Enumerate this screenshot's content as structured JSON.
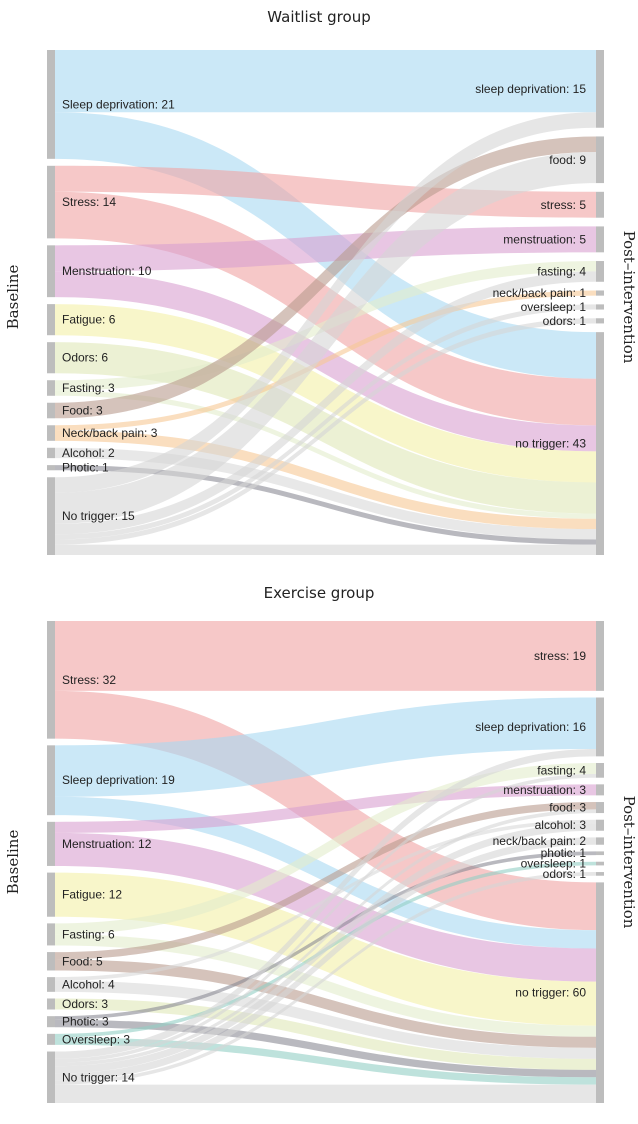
{
  "chart_data": [
    {
      "type": "sankey",
      "title": "Waitlist group",
      "left_axis_label": "Baseline",
      "right_axis_label": "Post–intervention",
      "sources": [
        {
          "name": "Sleep deprivation",
          "value": 21,
          "label": "Sleep deprivation: 21",
          "color": "#a9d8f1"
        },
        {
          "name": "Stress",
          "value": 14,
          "label": "Stress: 14",
          "color": "#f0a3a3"
        },
        {
          "name": "Menstruation",
          "value": 10,
          "label": "Menstruation: 10",
          "color": "#d9a0d0"
        },
        {
          "name": "Fatigue",
          "value": 6,
          "label": "Fatigue: 6",
          "color": "#f3f0a6"
        },
        {
          "name": "Odors",
          "value": 6,
          "label": "Odors: 6",
          "color": "#dfe8b8"
        },
        {
          "name": "Fasting",
          "value": 3,
          "label": "Fasting: 3",
          "color": "#e2eccb"
        },
        {
          "name": "Food",
          "value": 3,
          "label": "Food: 3",
          "color": "#b99b8d"
        },
        {
          "name": "Neck/back pain",
          "value": 3,
          "label": "Neck/back pain: 3",
          "color": "#f6c894"
        },
        {
          "name": "Alcohol",
          "value": 2,
          "label": "Alcohol: 2",
          "color": "#d8d8d8"
        },
        {
          "name": "Photic",
          "value": 1,
          "label": "Photic: 1",
          "color": "#8b8b94"
        },
        {
          "name": "No trigger",
          "value": 15,
          "label": "No trigger: 15",
          "color": "#d6d6d6"
        }
      ],
      "targets": [
        {
          "name": "sleep deprivation",
          "value": 15,
          "label": "sleep deprivation: 15"
        },
        {
          "name": "food",
          "value": 9,
          "label": "food: 9"
        },
        {
          "name": "stress",
          "value": 5,
          "label": "stress: 5"
        },
        {
          "name": "menstruation",
          "value": 5,
          "label": "menstruation: 5"
        },
        {
          "name": "fasting",
          "value": 4,
          "label": "fasting: 4"
        },
        {
          "name": "neck/back pain",
          "value": 1,
          "label": "neck/back pain: 1"
        },
        {
          "name": "oversleep",
          "value": 1,
          "label": "oversleep: 1"
        },
        {
          "name": "odors",
          "value": 1,
          "label": "odors: 1"
        },
        {
          "name": "no trigger",
          "value": 43,
          "label": "no trigger: 43"
        }
      ],
      "links": [
        {
          "source": "Sleep deprivation",
          "target": "sleep deprivation",
          "value": 12
        },
        {
          "source": "Sleep deprivation",
          "target": "no trigger",
          "value": 9
        },
        {
          "source": "Stress",
          "target": "stress",
          "value": 5
        },
        {
          "source": "Stress",
          "target": "no trigger",
          "value": 9
        },
        {
          "source": "Menstruation",
          "target": "menstruation",
          "value": 5
        },
        {
          "source": "Menstruation",
          "target": "no trigger",
          "value": 5
        },
        {
          "source": "Fatigue",
          "target": "no trigger",
          "value": 6
        },
        {
          "source": "Odors",
          "target": "no trigger",
          "value": 6
        },
        {
          "source": "Fasting",
          "target": "fasting",
          "value": 2
        },
        {
          "source": "Fasting",
          "target": "no trigger",
          "value": 1
        },
        {
          "source": "Food",
          "target": "food",
          "value": 3
        },
        {
          "source": "Neck/back pain",
          "target": "neck/back pain",
          "value": 1
        },
        {
          "source": "Neck/back pain",
          "target": "no trigger",
          "value": 2
        },
        {
          "source": "Alcohol",
          "target": "no trigger",
          "value": 2
        },
        {
          "source": "Photic",
          "target": "no trigger",
          "value": 1
        },
        {
          "source": "No trigger",
          "target": "sleep deprivation",
          "value": 3
        },
        {
          "source": "No trigger",
          "target": "food",
          "value": 6
        },
        {
          "source": "No trigger",
          "target": "fasting",
          "value": 2
        },
        {
          "source": "No trigger",
          "target": "oversleep",
          "value": 1
        },
        {
          "source": "No trigger",
          "target": "odors",
          "value": 1
        },
        {
          "source": "No trigger",
          "target": "no trigger",
          "value": 2
        }
      ]
    },
    {
      "type": "sankey",
      "title": "Exercise group",
      "left_axis_label": "Baseline",
      "right_axis_label": "Post–intervention",
      "sources": [
        {
          "name": "Stress",
          "value": 32,
          "label": "Stress: 32",
          "color": "#f0a3a3"
        },
        {
          "name": "Sleep deprivation",
          "value": 19,
          "label": "Sleep deprivation: 19",
          "color": "#a9d8f1"
        },
        {
          "name": "Menstruation",
          "value": 12,
          "label": "Menstruation: 12",
          "color": "#d9a0d0"
        },
        {
          "name": "Fatigue",
          "value": 12,
          "label": "Fatigue: 12",
          "color": "#f3f0a6"
        },
        {
          "name": "Fasting",
          "value": 6,
          "label": "Fasting: 6",
          "color": "#e2eccb"
        },
        {
          "name": "Food",
          "value": 5,
          "label": "Food: 5",
          "color": "#b99b8d"
        },
        {
          "name": "Alcohol",
          "value": 4,
          "label": "Alcohol: 4",
          "color": "#d8d8d8"
        },
        {
          "name": "Odors",
          "value": 3,
          "label": "Odors: 3",
          "color": "#dfe8b8"
        },
        {
          "name": "Photic",
          "value": 3,
          "label": "Photic: 3",
          "color": "#8b8b94"
        },
        {
          "name": "Oversleep",
          "value": 3,
          "label": "Oversleep: 3",
          "color": "#93cfc4"
        },
        {
          "name": "No trigger",
          "value": 14,
          "label": "No trigger: 14",
          "color": "#d6d6d6"
        }
      ],
      "targets": [
        {
          "name": "stress",
          "value": 19,
          "label": "stress: 19"
        },
        {
          "name": "sleep deprivation",
          "value": 16,
          "label": "sleep deprivation: 16"
        },
        {
          "name": "fasting",
          "value": 4,
          "label": "fasting: 4"
        },
        {
          "name": "menstruation",
          "value": 3,
          "label": "menstruation: 3"
        },
        {
          "name": "food",
          "value": 3,
          "label": "food: 3"
        },
        {
          "name": "alcohol",
          "value": 3,
          "label": "alcohol: 3"
        },
        {
          "name": "neck/back pain",
          "value": 2,
          "label": "neck/back pain: 2"
        },
        {
          "name": "photic",
          "value": 1,
          "label": "photic: 1"
        },
        {
          "name": "oversleep",
          "value": 1,
          "label": "oversleep: 1"
        },
        {
          "name": "odors",
          "value": 1,
          "label": "odors: 1"
        },
        {
          "name": "no trigger",
          "value": 60,
          "label": "no trigger: 60"
        }
      ],
      "links": [
        {
          "source": "Stress",
          "target": "stress",
          "value": 19
        },
        {
          "source": "Stress",
          "target": "no trigger",
          "value": 13
        },
        {
          "source": "Sleep deprivation",
          "target": "sleep deprivation",
          "value": 14
        },
        {
          "source": "Sleep deprivation",
          "target": "no trigger",
          "value": 5
        },
        {
          "source": "Menstruation",
          "target": "menstruation",
          "value": 3
        },
        {
          "source": "Menstruation",
          "target": "no trigger",
          "value": 9
        },
        {
          "source": "Fatigue",
          "target": "no trigger",
          "value": 12
        },
        {
          "source": "Fasting",
          "target": "fasting",
          "value": 3
        },
        {
          "source": "Fasting",
          "target": "no trigger",
          "value": 3
        },
        {
          "source": "Food",
          "target": "food",
          "value": 2
        },
        {
          "source": "Food",
          "target": "no trigger",
          "value": 3
        },
        {
          "source": "Alcohol",
          "target": "alcohol",
          "value": 1
        },
        {
          "source": "Alcohol",
          "target": "no trigger",
          "value": 3
        },
        {
          "source": "Odors",
          "target": "no trigger",
          "value": 3
        },
        {
          "source": "Photic",
          "target": "photic",
          "value": 1
        },
        {
          "source": "Photic",
          "target": "no trigger",
          "value": 2
        },
        {
          "source": "Oversleep",
          "target": "oversleep",
          "value": 1
        },
        {
          "source": "Oversleep",
          "target": "no trigger",
          "value": 2
        },
        {
          "source": "No trigger",
          "target": "sleep deprivation",
          "value": 2
        },
        {
          "source": "No trigger",
          "target": "fasting",
          "value": 1
        },
        {
          "source": "No trigger",
          "target": "food",
          "value": 1
        },
        {
          "source": "No trigger",
          "target": "alcohol",
          "value": 2
        },
        {
          "source": "No trigger",
          "target": "neck/back pain",
          "value": 2
        },
        {
          "source": "No trigger",
          "target": "odors",
          "value": 1
        },
        {
          "source": "No trigger",
          "target": "no trigger",
          "value": 5
        }
      ]
    }
  ]
}
